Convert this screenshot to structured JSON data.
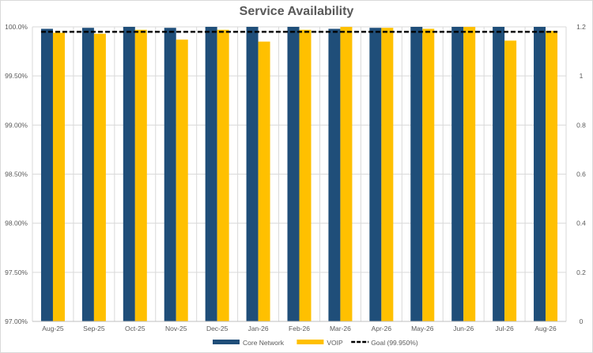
{
  "chart_data": {
    "type": "bar",
    "title": "Service Availability",
    "categories": [
      "Aug-25",
      "Sep-25",
      "Oct-25",
      "Nov-25",
      "Dec-25",
      "Jan-26",
      "Feb-26",
      "Mar-26",
      "Apr-26",
      "May-26",
      "Jun-26",
      "Jul-26",
      "Aug-26"
    ],
    "series": [
      {
        "name": "Core Network",
        "color": "#1f4e79",
        "values": [
          99.98,
          99.99,
          100.0,
          99.99,
          100.0,
          100.0,
          100.0,
          99.98,
          99.99,
          100.0,
          100.0,
          100.0,
          100.0
        ]
      },
      {
        "name": "VOIP",
        "color": "#ffc000",
        "values": [
          99.94,
          99.93,
          99.97,
          99.87,
          99.97,
          99.85,
          99.97,
          100.0,
          99.99,
          99.98,
          100.0,
          99.86,
          99.96
        ]
      }
    ],
    "goal": {
      "name": "Goal (99.950%)",
      "value": 99.95,
      "color": "#000000",
      "style": "dashed"
    },
    "y_left": {
      "min": 97.0,
      "max": 100.0,
      "ticks": [
        "97.00%",
        "97.50%",
        "98.00%",
        "98.50%",
        "99.00%",
        "99.50%",
        "100.0%"
      ]
    },
    "y_right": {
      "min": 0,
      "max": 1.2,
      "ticks": [
        "0",
        "0.2",
        "0.4",
        "0.6",
        "0.8",
        "1",
        "1.2"
      ]
    },
    "grid": true,
    "legend_position": "bottom"
  }
}
